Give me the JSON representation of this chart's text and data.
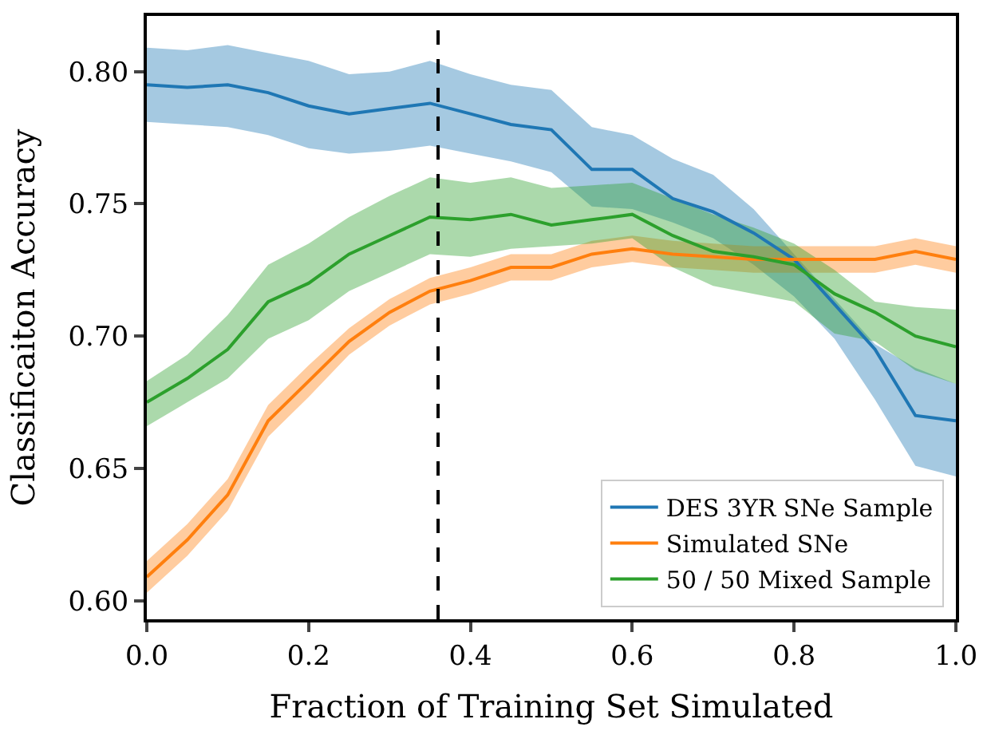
{
  "chart_data": {
    "type": "line",
    "xlabel": "Fraction of Training Set Simulated",
    "ylabel": "Classificaiton Accuracy",
    "x": [
      0,
      0.05,
      0.1,
      0.15,
      0.2,
      0.25,
      0.3,
      0.35,
      0.4,
      0.45,
      0.5,
      0.55,
      0.6,
      0.65,
      0.7,
      0.75,
      0.8,
      0.85,
      0.9,
      0.95,
      1.0
    ],
    "series": [
      {
        "name": "DES 3YR SNe Sample",
        "color": "#1f77b4",
        "values": [
          0.795,
          0.794,
          0.795,
          0.792,
          0.787,
          0.784,
          0.786,
          0.788,
          0.784,
          0.78,
          0.778,
          0.763,
          0.763,
          0.752,
          0.747,
          0.739,
          0.729,
          0.712,
          0.695,
          0.67,
          0.668
        ],
        "upper": [
          0.809,
          0.808,
          0.81,
          0.807,
          0.804,
          0.799,
          0.8,
          0.804,
          0.799,
          0.795,
          0.793,
          0.779,
          0.776,
          0.767,
          0.761,
          0.748,
          0.731,
          0.714,
          0.697,
          0.688,
          0.682
        ],
        "lower": [
          0.781,
          0.78,
          0.779,
          0.776,
          0.771,
          0.769,
          0.77,
          0.772,
          0.769,
          0.766,
          0.762,
          0.749,
          0.748,
          0.743,
          0.737,
          0.727,
          0.715,
          0.699,
          0.676,
          0.651,
          0.647
        ]
      },
      {
        "name": "Simulated SNe",
        "color": "#ff7f0e",
        "values": [
          0.609,
          0.623,
          0.64,
          0.668,
          0.683,
          0.698,
          0.709,
          0.717,
          0.721,
          0.726,
          0.726,
          0.731,
          0.733,
          0.731,
          0.73,
          0.729,
          0.729,
          0.729,
          0.729,
          0.732,
          0.729
        ],
        "upper": [
          0.615,
          0.629,
          0.646,
          0.674,
          0.689,
          0.703,
          0.714,
          0.722,
          0.726,
          0.731,
          0.731,
          0.736,
          0.738,
          0.736,
          0.735,
          0.734,
          0.734,
          0.734,
          0.734,
          0.737,
          0.734
        ],
        "lower": [
          0.603,
          0.617,
          0.634,
          0.662,
          0.677,
          0.693,
          0.704,
          0.712,
          0.716,
          0.721,
          0.721,
          0.726,
          0.728,
          0.726,
          0.725,
          0.724,
          0.724,
          0.724,
          0.724,
          0.727,
          0.724
        ]
      },
      {
        "name": "50 / 50 Mixed Sample",
        "color": "#2ca02c",
        "values": [
          0.675,
          0.684,
          0.695,
          0.713,
          0.72,
          0.731,
          0.738,
          0.745,
          0.744,
          0.746,
          0.742,
          0.744,
          0.746,
          0.738,
          0.732,
          0.73,
          0.727,
          0.716,
          0.709,
          0.7,
          0.696
        ],
        "upper": [
          0.683,
          0.693,
          0.708,
          0.727,
          0.735,
          0.745,
          0.753,
          0.76,
          0.758,
          0.76,
          0.756,
          0.757,
          0.758,
          0.752,
          0.746,
          0.741,
          0.735,
          0.725,
          0.713,
          0.711,
          0.71
        ],
        "lower": [
          0.666,
          0.675,
          0.684,
          0.699,
          0.706,
          0.717,
          0.724,
          0.731,
          0.73,
          0.733,
          0.734,
          0.735,
          0.737,
          0.726,
          0.719,
          0.716,
          0.713,
          0.701,
          0.698,
          0.687,
          0.682
        ]
      }
    ],
    "xlim": [
      0,
      1.0
    ],
    "xticks": [
      {
        "value": 0,
        "label": "0.0"
      },
      0.2,
      0.4,
      0.6,
      0.8,
      {
        "value": 1.0,
        "label": "1.0"
      }
    ],
    "ylim": [
      0.593,
      0.821
    ],
    "yticks": [
      {
        "value": 0.6,
        "label": "0.60"
      },
      0.65,
      {
        "value": 0.7,
        "label": "0.70"
      },
      0.75,
      {
        "value": 0.8,
        "label": "0.80"
      }
    ],
    "ref_lines": [
      {
        "axis": "x",
        "value": 0.36,
        "color": "#000000",
        "line_style": "dashed"
      }
    ],
    "legend": "bottom right",
    "marker": "none",
    "line_style": "solid"
  }
}
